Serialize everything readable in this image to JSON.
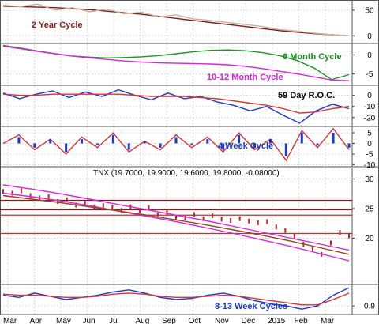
{
  "chart_data": {
    "type": "line",
    "x_axis": {
      "months": [
        "Mar",
        "Apr",
        "May",
        "Jun",
        "Jul",
        "Aug",
        "Sep",
        "Oct",
        "Nov",
        "Dec",
        "2015",
        "Feb",
        "Mar"
      ]
    },
    "header": {
      "symbol": "TNX",
      "open": "19.7000",
      "high": "19.9000",
      "low": "19.6000",
      "close": "19.8000",
      "change": "-0.08000",
      "text": "TNX (19.7000, 19.9000, 19.6000, 19.8000, -0.08000)"
    },
    "panels": [
      {
        "id": "two-year-cycle",
        "label": "2 Year Cycle",
        "label_color": "#8b1a1a",
        "y_ticks": [
          50,
          0
        ],
        "ylim": [
          -15,
          70
        ],
        "series": [
          {
            "role": "cycle",
            "color": "#7a1a1a",
            "values": [
              58,
              57,
              56,
              55,
              53,
              51,
              48,
              45,
              42,
              38,
              34,
              30,
              26,
              22,
              18,
              14,
              10,
              7,
              4,
              2,
              0
            ]
          },
          {
            "role": "price-overlay",
            "color": "#c8b29a",
            "values": [
              60,
              57,
              62,
              50,
              55,
              47,
              52,
              43,
              46,
              37,
              41,
              33,
              30,
              26,
              22,
              18,
              12,
              9,
              5,
              2,
              0
            ]
          }
        ]
      },
      {
        "id": "six-month-cycle",
        "label": "6 Month Cycle",
        "label_color": "#1a8a1a",
        "label2": "10-12 Month Cycle",
        "label2_color": "#e020e0",
        "y_ticks": [
          0,
          -5
        ],
        "ylim": [
          -8,
          3
        ],
        "series": [
          {
            "role": "6-month",
            "color": "#1a9a1a",
            "values": [
              2.5,
              1.8,
              1.0,
              0.3,
              -0.3,
              -0.6,
              -0.8,
              -0.7,
              -0.5,
              -0.2,
              0.3,
              0.8,
              1.2,
              1.3,
              1.1,
              0.6,
              -0.2,
              -1.5,
              -3.5,
              -6.5,
              -5.2
            ]
          },
          {
            "role": "10-12-month",
            "color": "#e020e0",
            "values": [
              2.3,
              1.6,
              0.9,
              0.3,
              -0.3,
              -0.8,
              -1.2,
              -1.6,
              -1.9,
              -2.1,
              -2.2,
              -2.3,
              -2.4,
              -2.6,
              -3.0,
              -3.6,
              -4.3,
              -5.0,
              -5.8,
              -6.6,
              -6.8
            ]
          }
        ]
      },
      {
        "id": "roc",
        "label": "59 Day R.O.C.",
        "label_color": "#000000",
        "y_ticks": [
          0,
          -10,
          -20
        ],
        "ylim": [
          -28,
          9
        ],
        "series": [
          {
            "role": "roc",
            "color": "#1a3ad0",
            "values": [
              2,
              -3,
              1,
              4,
              -2,
              3,
              -1,
              5,
              0,
              -4,
              2,
              -3,
              -1,
              -6,
              -9,
              -14,
              -10,
              -18,
              -25,
              -14,
              -8,
              -12
            ]
          },
          {
            "role": "roc-smooth",
            "color": "#e03030",
            "values": [
              1,
              0,
              0,
              1,
              1,
              1,
              1,
              1,
              0,
              -1,
              -1,
              -1,
              -2,
              -3,
              -5,
              -7,
              -9,
              -12,
              -16,
              -15,
              -12,
              -10
            ]
          }
        ]
      },
      {
        "id": "four-week-cycle",
        "label": "4 Week Cycle",
        "label_color": "#1a3ad0",
        "y_ticks": [
          5,
          0,
          -5,
          -10
        ],
        "ylim": [
          -11,
          8
        ],
        "series": [
          {
            "role": "4-week-line",
            "color": "#e03030",
            "values": [
              0,
              4,
              -3,
              2,
              -5,
              3,
              -2,
              5,
              -4,
              1,
              -3,
              4,
              -2,
              3,
              -4,
              5,
              -3,
              2,
              -8,
              6,
              -2,
              7,
              -3
            ]
          },
          {
            "role": "4-week-histogram",
            "color": "#1a3ad0",
            "values": [
              0,
              3,
              -2,
              2,
              -4,
              2,
              -1,
              4,
              -3,
              1,
              -2,
              3,
              -1,
              2,
              -3,
              4,
              -2,
              2,
              -6,
              5,
              -1,
              5,
              -2
            ]
          }
        ]
      },
      {
        "id": "tnx-price",
        "y_ticks": [
          30,
          25,
          20
        ],
        "ylim": [
          12.2,
          31.8
        ],
        "series": [
          {
            "role": "price-bars",
            "color": "#cc2020",
            "values": [
              27.9,
              27.6,
              28.0,
              27.2,
              26.8,
              27.0,
              26.2,
              26.5,
              25.6,
              25.9,
              25.3,
              25.5,
              25.2,
              24.7,
              25.3,
              24.6,
              25.2,
              23.9,
              24.4,
              23.6,
              23.4,
              24.0,
              23.3,
              23.8,
              23.2,
              23.0,
              23.3,
              22.9,
              22.6,
              22.8,
              21.9,
              21.3,
              20.4,
              19.0,
              18.1,
              17.3,
              19.2,
              21.0,
              20.4
            ]
          },
          {
            "role": "envelope-upper",
            "color": "#e020e0",
            "values": [
              29,
              28.3,
              27.5,
              26.6,
              25.7,
              24.8,
              23.9,
              23.0,
              22.0,
              21.0,
              20.0,
              19.0,
              18.0
            ]
          },
          {
            "role": "envelope-lower",
            "color": "#e020e0",
            "values": [
              27.6,
              27.0,
              26.3,
              25.5,
              24.6,
              23.7,
              22.8,
              21.8,
              20.8,
              19.7,
              18.6,
              17.4,
              16.2
            ]
          },
          {
            "role": "trend-brown",
            "color": "#8b4a1a",
            "values": [
              27.2,
              26.6,
              26.0,
              25.3,
              24.6,
              23.9,
              23.1,
              22.3,
              21.4,
              20.5,
              19.5,
              18.4,
              17.3
            ]
          }
        ],
        "horizontal_levels": [
          {
            "value": 26.4,
            "color": "#8b1a1a"
          },
          {
            "value": 24.8,
            "color": "#8b1a1a"
          },
          {
            "value": 23.9,
            "color": "#c03030"
          },
          {
            "value": 20.8,
            "color": "#c03030"
          }
        ]
      },
      {
        "id": "eight-thirteen-week",
        "label": "8-13 Week Cycles",
        "label_color": "#1a3ad0",
        "y_ticks": [
          0.9
        ],
        "ylim": [
          0.82,
          1.1
        ],
        "series": [
          {
            "role": "8-week",
            "color": "#1a3ad0",
            "values": [
              1.0,
              0.98,
              1.02,
              0.99,
              0.96,
              0.98,
              1.0,
              1.03,
              1.05,
              1.02,
              0.98,
              0.96,
              0.97,
              1.0,
              1.02,
              0.99,
              0.95,
              0.92,
              0.9,
              0.87,
              0.9,
              1.0,
              1.07
            ]
          },
          {
            "role": "13-week",
            "color": "#e03030",
            "values": [
              1.01,
              1.0,
              1.0,
              0.99,
              0.98,
              0.98,
              0.99,
              1.01,
              1.02,
              1.01,
              0.99,
              0.98,
              0.98,
              0.99,
              1.0,
              0.99,
              0.97,
              0.95,
              0.93,
              0.91,
              0.91,
              0.96,
              1.02
            ]
          }
        ]
      }
    ]
  }
}
